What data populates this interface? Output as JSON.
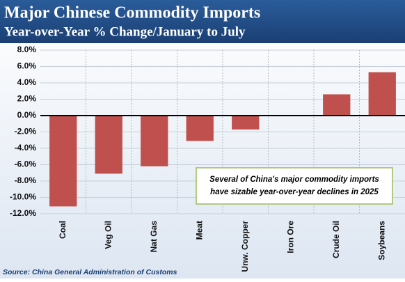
{
  "chart_data": {
    "type": "bar",
    "title": "Major Chinese Commodity Imports",
    "subtitle": "Year-over-Year % Change/January to July",
    "categories": [
      "Coal",
      "Veg Oil",
      "Nat Gas",
      "Meat",
      "Unw. Copper",
      "Iron Ore",
      "Crude Oil",
      "Soybeans"
    ],
    "values": [
      -11.1,
      -7.1,
      -6.2,
      -3.1,
      -1.7,
      0,
      2.6,
      5.3
    ],
    "color": "#c0504d",
    "ylim": [
      -12,
      8
    ],
    "yticks": [
      {
        "value": 8,
        "label": "8.0%"
      },
      {
        "value": 6,
        "label": "6.0%"
      },
      {
        "value": 4,
        "label": "4.0%"
      },
      {
        "value": 2,
        "label": "2.0%"
      },
      {
        "value": 0,
        "label": "0.0%"
      },
      {
        "value": -2,
        "label": "-2.0%"
      },
      {
        "value": -4,
        "label": "-4.0%"
      },
      {
        "value": -6,
        "label": "-6.0%"
      },
      {
        "value": -8,
        "label": "-8.0%"
      },
      {
        "value": -10,
        "label": "-10.0%"
      },
      {
        "value": -12,
        "label": "-12.0%"
      }
    ],
    "grid": true,
    "annotation": [
      "Several of China's major commodity imports",
      "have sizable year-over-year declines in 2025"
    ],
    "source": "Source: China General Administration of Customs"
  }
}
